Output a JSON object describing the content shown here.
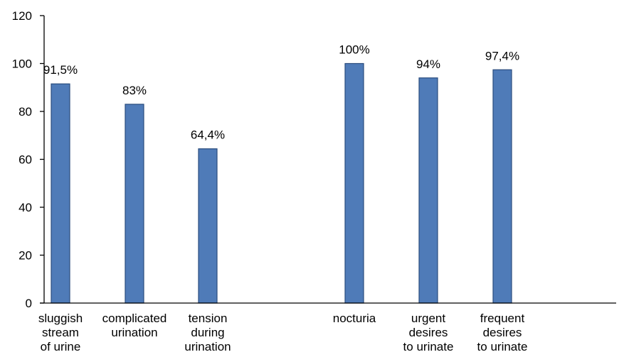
{
  "chart_data": {
    "type": "bar",
    "title": "",
    "xlabel": "",
    "ylabel": "",
    "ylim": [
      0,
      120
    ],
    "yticks": [
      0,
      20,
      40,
      60,
      80,
      100,
      120
    ],
    "grid": false,
    "legend": "none",
    "bar_color": "#4f7bb8",
    "bar_edge_color": "#2b4d7e",
    "categories": [
      [
        "sluggish",
        "stream",
        "of urine"
      ],
      [
        "complicated",
        "urination"
      ],
      [
        "tension",
        "during",
        "urination"
      ],
      [
        "nocturia"
      ],
      [
        "urgent",
        "desires",
        "to urinate"
      ],
      [
        "frequent",
        "desires",
        "to urinate"
      ]
    ],
    "values": [
      91.5,
      83,
      64.4,
      100,
      94,
      97.4
    ],
    "data_labels": [
      "91,5%",
      "83%",
      "64,4%",
      "100%",
      "94%",
      "97,4%"
    ]
  }
}
